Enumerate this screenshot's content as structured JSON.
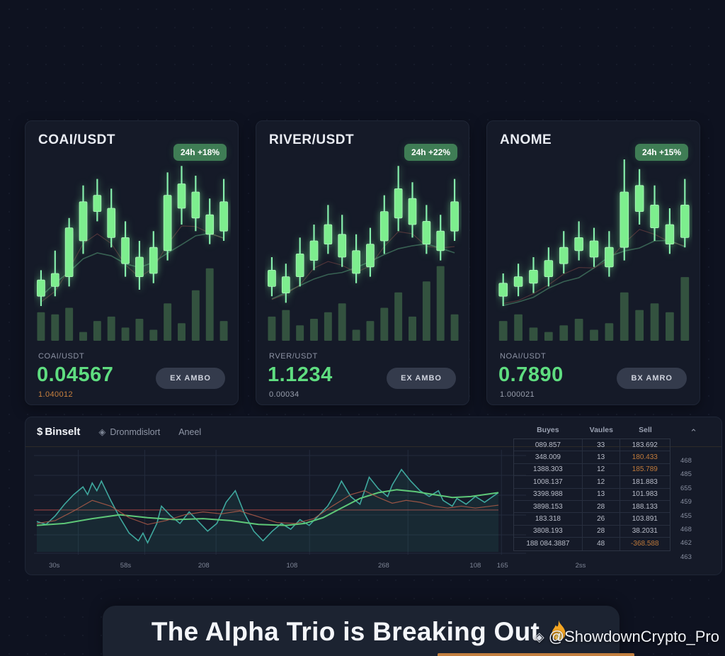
{
  "colors": {
    "background": "#0e1220",
    "card_bg": "#151a28",
    "accent_green": "#5fdd80",
    "candle_green": "#7dee8e",
    "volume_green": "#33523f",
    "badge_green": "#3f7d55",
    "orange": "#c9813e",
    "teal_line": "#3fa89e",
    "ma_green": "#5ec878",
    "ma_orange": "#b05c48",
    "baseline_red": "#a04545"
  },
  "cards": [
    {
      "title": "COAI/USDT",
      "badge": "24h +18%",
      "label": "COAI/USDT",
      "price": "0.04567",
      "sub_value": "1.040012",
      "sub_orange": true,
      "button": "EX AMBO"
    },
    {
      "title": "RIVER/USDT",
      "badge": "24h +22%",
      "label": "RVER/USDT",
      "price": "1.1234",
      "sub_value": "0.00034",
      "sub_orange": false,
      "button": "EX AMBO"
    },
    {
      "title": "ANOME",
      "badge": "24h +15%",
      "label": "NOAI/USDT",
      "price": "0.7890",
      "sub_value": "1.000021",
      "sub_orange": false,
      "button": "BX AMRO"
    }
  ],
  "panel": {
    "brand_icon": "$",
    "brand": "Binselt",
    "nav_icon": "◈",
    "nav_items": [
      "Dronmdislort",
      "Aneel"
    ],
    "collapse_icon": "⌃",
    "table": {
      "headers": [
        "Buyes",
        "Vaules",
        "Sell"
      ],
      "rows": [
        [
          "089.857",
          "33",
          "183.692"
        ],
        [
          "348.009",
          "13",
          "180.433"
        ],
        [
          "1388.303",
          "12",
          "185.789"
        ],
        [
          "1008.137",
          "12",
          "181.883"
        ],
        [
          "3398.988",
          "13",
          "101.983"
        ],
        [
          "3898.153",
          "28",
          "188.133"
        ],
        [
          "183.318",
          "26",
          "103.891"
        ],
        [
          "3808.193",
          "28",
          "38.2031"
        ],
        [
          "188 084.3887",
          "48",
          "-368.588"
        ]
      ],
      "orange_sell_rows": [
        1,
        2,
        8
      ]
    },
    "price_scale": [
      "468",
      "485",
      "655",
      "459",
      "455",
      "468",
      "462",
      "463"
    ]
  },
  "banner": {
    "text": "The Alpha Trio is Breaking Out"
  },
  "watermark": {
    "icon": "◈",
    "text": "@ShowdownCrypto_Pro"
  },
  "chart_data": [
    {
      "type": "candlestick",
      "symbol": "COAI/USDT",
      "change_24h": "+18%",
      "note": "values normalized 0-100; candle = [wick_low, body_low, body_high, wick_high]",
      "ylim": [
        0,
        100
      ],
      "candles": [
        [
          10,
          16,
          26,
          32
        ],
        [
          16,
          22,
          30,
          44
        ],
        [
          22,
          28,
          58,
          64
        ],
        [
          42,
          50,
          74,
          84
        ],
        [
          62,
          68,
          78,
          88
        ],
        [
          46,
          52,
          70,
          82
        ],
        [
          28,
          36,
          52,
          62
        ],
        [
          20,
          28,
          40,
          50
        ],
        [
          24,
          30,
          46,
          56
        ],
        [
          38,
          44,
          78,
          92
        ],
        [
          60,
          70,
          85,
          96
        ],
        [
          56,
          64,
          80,
          90
        ],
        [
          48,
          54,
          66,
          76
        ],
        [
          50,
          56,
          74,
          88
        ]
      ],
      "volumes": [
        26,
        24,
        30,
        8,
        18,
        22,
        12,
        20,
        10,
        34,
        16,
        46,
        66,
        18
      ]
    },
    {
      "type": "candlestick",
      "symbol": "RIVER/USDT",
      "change_24h": "+22%",
      "ylim": [
        0,
        100
      ],
      "candles": [
        [
          16,
          22,
          32,
          40
        ],
        [
          12,
          18,
          28,
          36
        ],
        [
          22,
          28,
          42,
          52
        ],
        [
          32,
          38,
          50,
          60
        ],
        [
          42,
          48,
          60,
          72
        ],
        [
          34,
          40,
          54,
          66
        ],
        [
          24,
          30,
          44,
          54
        ],
        [
          28,
          34,
          48,
          58
        ],
        [
          42,
          50,
          68,
          78
        ],
        [
          56,
          64,
          82,
          96
        ],
        [
          52,
          60,
          76,
          86
        ],
        [
          42,
          48,
          62,
          72
        ],
        [
          38,
          44,
          56,
          66
        ],
        [
          50,
          56,
          74,
          88
        ]
      ],
      "volumes": [
        22,
        28,
        14,
        20,
        26,
        34,
        10,
        18,
        30,
        44,
        22,
        54,
        68,
        24
      ]
    },
    {
      "type": "candlestick",
      "symbol": "ANOME",
      "change_24h": "+15%",
      "ylim": [
        0,
        100
      ],
      "candles": [
        [
          10,
          16,
          24,
          30
        ],
        [
          16,
          22,
          28,
          36
        ],
        [
          18,
          24,
          32,
          40
        ],
        [
          22,
          28,
          38,
          46
        ],
        [
          30,
          36,
          46,
          56
        ],
        [
          38,
          44,
          52,
          62
        ],
        [
          34,
          40,
          50,
          58
        ],
        [
          28,
          34,
          46,
          56
        ],
        [
          38,
          46,
          80,
          100
        ],
        [
          60,
          68,
          84,
          94
        ],
        [
          50,
          58,
          72,
          84
        ],
        [
          42,
          48,
          60,
          70
        ],
        [
          46,
          52,
          72,
          88
        ]
      ],
      "volumes": [
        18,
        24,
        12,
        8,
        14,
        20,
        10,
        16,
        44,
        28,
        34,
        26,
        58
      ]
    },
    {
      "type": "line",
      "title": "market depth chart",
      "xlim": [
        0,
        100
      ],
      "ylim": [
        0,
        100
      ],
      "grid": true,
      "baseline_y": 42,
      "x_ticks": [
        {
          "t": "30s",
          "p": 3
        },
        {
          "t": "58s",
          "p": 13.5
        },
        {
          "t": "208",
          "p": 25
        },
        {
          "t": "108",
          "p": 38
        },
        {
          "t": "268",
          "p": 51.5
        },
        {
          "t": "108",
          "p": 65
        },
        {
          "t": "165",
          "p": 69
        },
        {
          "t": "2ss",
          "p": 80.5
        }
      ],
      "series": [
        {
          "name": "price",
          "color": "#3fa89e",
          "fill": true,
          "points": [
            [
              0,
              30
            ],
            [
              2,
              27
            ],
            [
              4,
              36
            ],
            [
              6,
              48
            ],
            [
              8,
              58
            ],
            [
              10,
              66
            ],
            [
              11,
              58
            ],
            [
              12,
              70
            ],
            [
              13,
              62
            ],
            [
              14,
              72
            ],
            [
              16,
              52
            ],
            [
              18,
              34
            ],
            [
              20,
              18
            ],
            [
              22,
              10
            ],
            [
              23,
              18
            ],
            [
              24,
              8
            ],
            [
              26,
              28
            ],
            [
              27,
              46
            ],
            [
              29,
              36
            ],
            [
              31,
              28
            ],
            [
              33,
              40
            ],
            [
              35,
              30
            ],
            [
              37,
              20
            ],
            [
              39,
              28
            ],
            [
              41,
              50
            ],
            [
              43,
              62
            ],
            [
              45,
              38
            ],
            [
              47,
              20
            ],
            [
              49,
              10
            ],
            [
              51,
              20
            ],
            [
              53,
              28
            ],
            [
              55,
              22
            ],
            [
              57,
              32
            ],
            [
              59,
              26
            ],
            [
              61,
              36
            ],
            [
              63,
              46
            ],
            [
              65,
              62
            ],
            [
              66,
              72
            ],
            [
              68,
              56
            ],
            [
              70,
              48
            ],
            [
              71,
              62
            ],
            [
              72,
              76
            ],
            [
              74,
              64
            ],
            [
              76,
              56
            ],
            [
              77,
              68
            ],
            [
              79,
              84
            ],
            [
              81,
              72
            ],
            [
              83,
              62
            ],
            [
              85,
              56
            ],
            [
              87,
              62
            ],
            [
              88,
              52
            ],
            [
              90,
              46
            ],
            [
              91,
              54
            ],
            [
              93,
              48
            ],
            [
              95,
              56
            ],
            [
              97,
              50
            ],
            [
              100,
              60
            ]
          ]
        },
        {
          "name": "ma-fast",
          "color": "#5ec878",
          "fill": false,
          "points": [
            [
              0,
              26
            ],
            [
              6,
              28
            ],
            [
              12,
              33
            ],
            [
              18,
              37
            ],
            [
              24,
              34
            ],
            [
              30,
              32
            ],
            [
              36,
              33
            ],
            [
              42,
              31
            ],
            [
              48,
              27
            ],
            [
              54,
              26
            ],
            [
              58,
              28
            ],
            [
              62,
              34
            ],
            [
              66,
              44
            ],
            [
              70,
              54
            ],
            [
              74,
              60
            ],
            [
              78,
              63
            ],
            [
              82,
              61
            ],
            [
              86,
              58
            ],
            [
              90,
              55
            ],
            [
              94,
              56
            ],
            [
              100,
              60
            ]
          ]
        },
        {
          "name": "ma-slow",
          "color": "#b05c48",
          "fill": false,
          "points": [
            [
              0,
              28
            ],
            [
              4,
              31
            ],
            [
              8,
              41
            ],
            [
              12,
              52
            ],
            [
              16,
              46
            ],
            [
              20,
              34
            ],
            [
              24,
              27
            ],
            [
              28,
              31
            ],
            [
              32,
              37
            ],
            [
              36,
              40
            ],
            [
              40,
              38
            ],
            [
              44,
              41
            ],
            [
              48,
              35
            ],
            [
              52,
              29
            ],
            [
              56,
              28
            ],
            [
              60,
              33
            ],
            [
              64,
              46
            ],
            [
              68,
              58
            ],
            [
              71,
              62
            ],
            [
              74,
              55
            ],
            [
              77,
              49
            ],
            [
              80,
              52
            ],
            [
              83,
              50
            ],
            [
              86,
              46
            ],
            [
              89,
              44
            ],
            [
              92,
              46
            ],
            [
              95,
              44
            ],
            [
              100,
              47
            ]
          ]
        }
      ]
    }
  ]
}
